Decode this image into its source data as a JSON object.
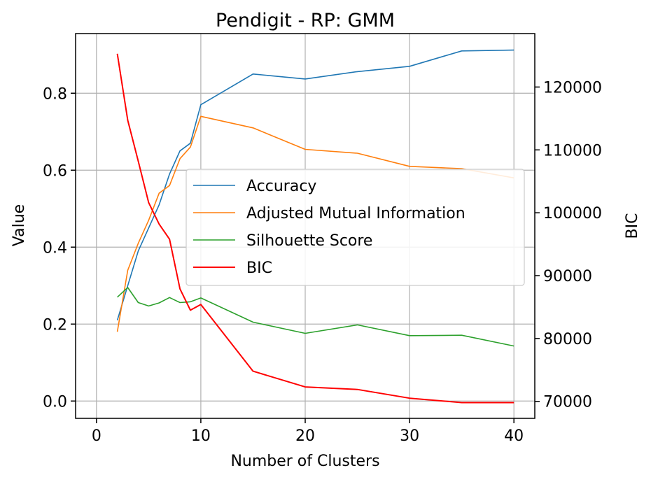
{
  "chart_data": {
    "type": "line",
    "title": "Pendigit - RP: GMM",
    "xlabel": "Number of Clusters",
    "ylabel": "Value",
    "y2label": "BIC",
    "xlim": [
      -2,
      42
    ],
    "ylim": [
      -0.045,
      0.955
    ],
    "y2lim": [
      67300,
      128500
    ],
    "xticks": [
      0,
      10,
      20,
      30,
      40
    ],
    "yticks": [
      0.0,
      0.2,
      0.4,
      0.6,
      0.8
    ],
    "y2ticks": [
      70000,
      80000,
      90000,
      100000,
      110000,
      120000
    ],
    "grid": true,
    "legend_position": "center-right",
    "x": [
      2,
      3,
      4,
      5,
      6,
      7,
      8,
      9,
      10,
      15,
      20,
      25,
      30,
      35,
      40
    ],
    "series": [
      {
        "name": "Accuracy",
        "axis": "left",
        "color": "#1f77b4",
        "values": [
          0.21,
          0.3,
          0.39,
          0.45,
          0.51,
          0.59,
          0.65,
          0.67,
          0.77,
          0.85,
          0.837,
          0.856,
          0.87,
          0.91,
          0.912
        ]
      },
      {
        "name": "Adjusted Mutual Information",
        "axis": "left",
        "color": "#ff7f0e",
        "values": [
          0.18,
          0.34,
          0.41,
          0.47,
          0.54,
          0.56,
          0.63,
          0.66,
          0.74,
          0.71,
          0.654,
          0.644,
          0.61,
          0.604,
          0.58
        ]
      },
      {
        "name": "Silhouette Score",
        "axis": "left",
        "color": "#2ca02c",
        "values": [
          0.27,
          0.295,
          0.256,
          0.247,
          0.255,
          0.269,
          0.256,
          0.258,
          0.268,
          0.205,
          0.176,
          0.198,
          0.17,
          0.171,
          0.143
        ]
      },
      {
        "name": "BIC",
        "axis": "right",
        "color": "#ff0000",
        "values": [
          125300,
          114700,
          108200,
          101600,
          98200,
          95800,
          87900,
          84500,
          85400,
          74800,
          72300,
          71900,
          70500,
          69800,
          69800
        ]
      }
    ]
  }
}
